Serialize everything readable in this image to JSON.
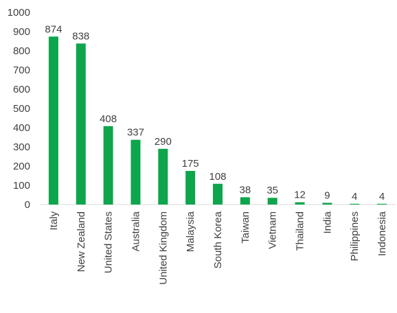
{
  "chart_data": {
    "type": "bar",
    "categories": [
      "Italy",
      "New Zealand",
      "United States",
      "Australia",
      "United Kingdom",
      "Malaysia",
      "South Korea",
      "Taiwan",
      "Vietnam",
      "Thailand",
      "India",
      "Philippines",
      "Indonesia"
    ],
    "values": [
      874,
      838,
      408,
      337,
      290,
      175,
      108,
      38,
      35,
      12,
      9,
      4,
      4
    ],
    "ylim": [
      0,
      1000
    ],
    "yticks": [
      0,
      100,
      200,
      300,
      400,
      500,
      600,
      700,
      800,
      900,
      1000
    ],
    "grid": false,
    "data_labels": true,
    "bar_color": "#0ea54c"
  }
}
